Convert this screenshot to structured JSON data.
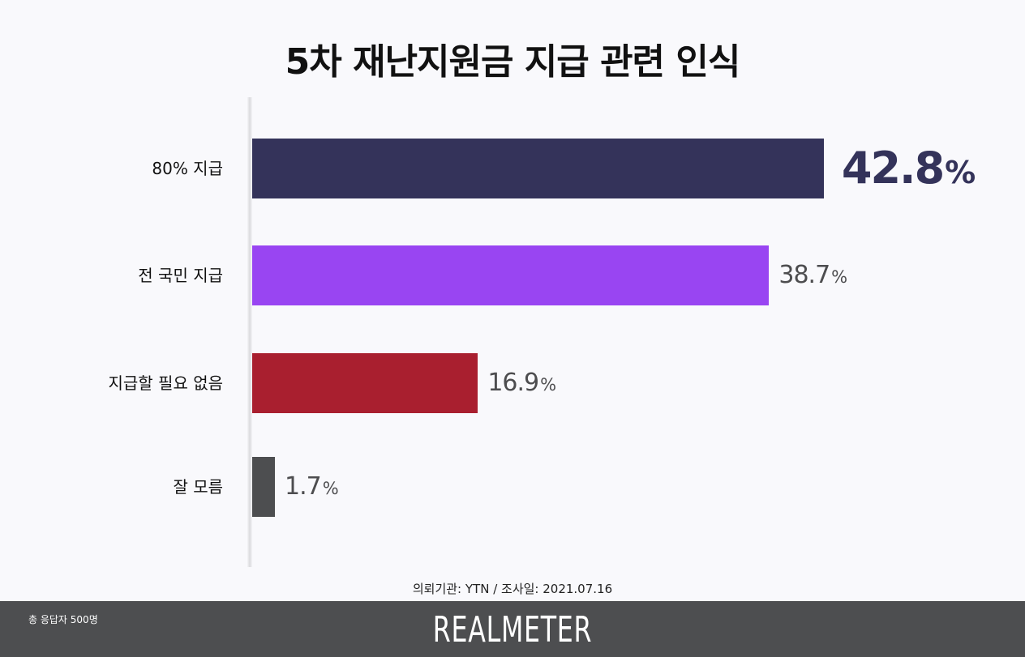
{
  "title": "5차 재난지원금 지급 관련 인식",
  "chart_data": {
    "type": "bar",
    "orientation": "horizontal",
    "title": "5차 재난지원금 지급 관련 인식",
    "categories": [
      "80% 지급",
      "전 국민 지급",
      "지급할 필요 없음",
      "잘 모름"
    ],
    "values": [
      42.8,
      38.7,
      16.9,
      1.7
    ],
    "value_labels": [
      "42.8",
      "38.7",
      "16.9",
      "1.7"
    ],
    "unit": "%",
    "colors": [
      "#34335a",
      "#9945f2",
      "#a91f2f",
      "#4d4e50"
    ],
    "xlim": [
      0,
      50
    ]
  },
  "source": "의뢰기관: YTN  /  조사일: 2021.07.16",
  "footer": {
    "respondents": "총 응답자 500명",
    "brand": "REALMETER",
    "background": "#4d4e50"
  }
}
